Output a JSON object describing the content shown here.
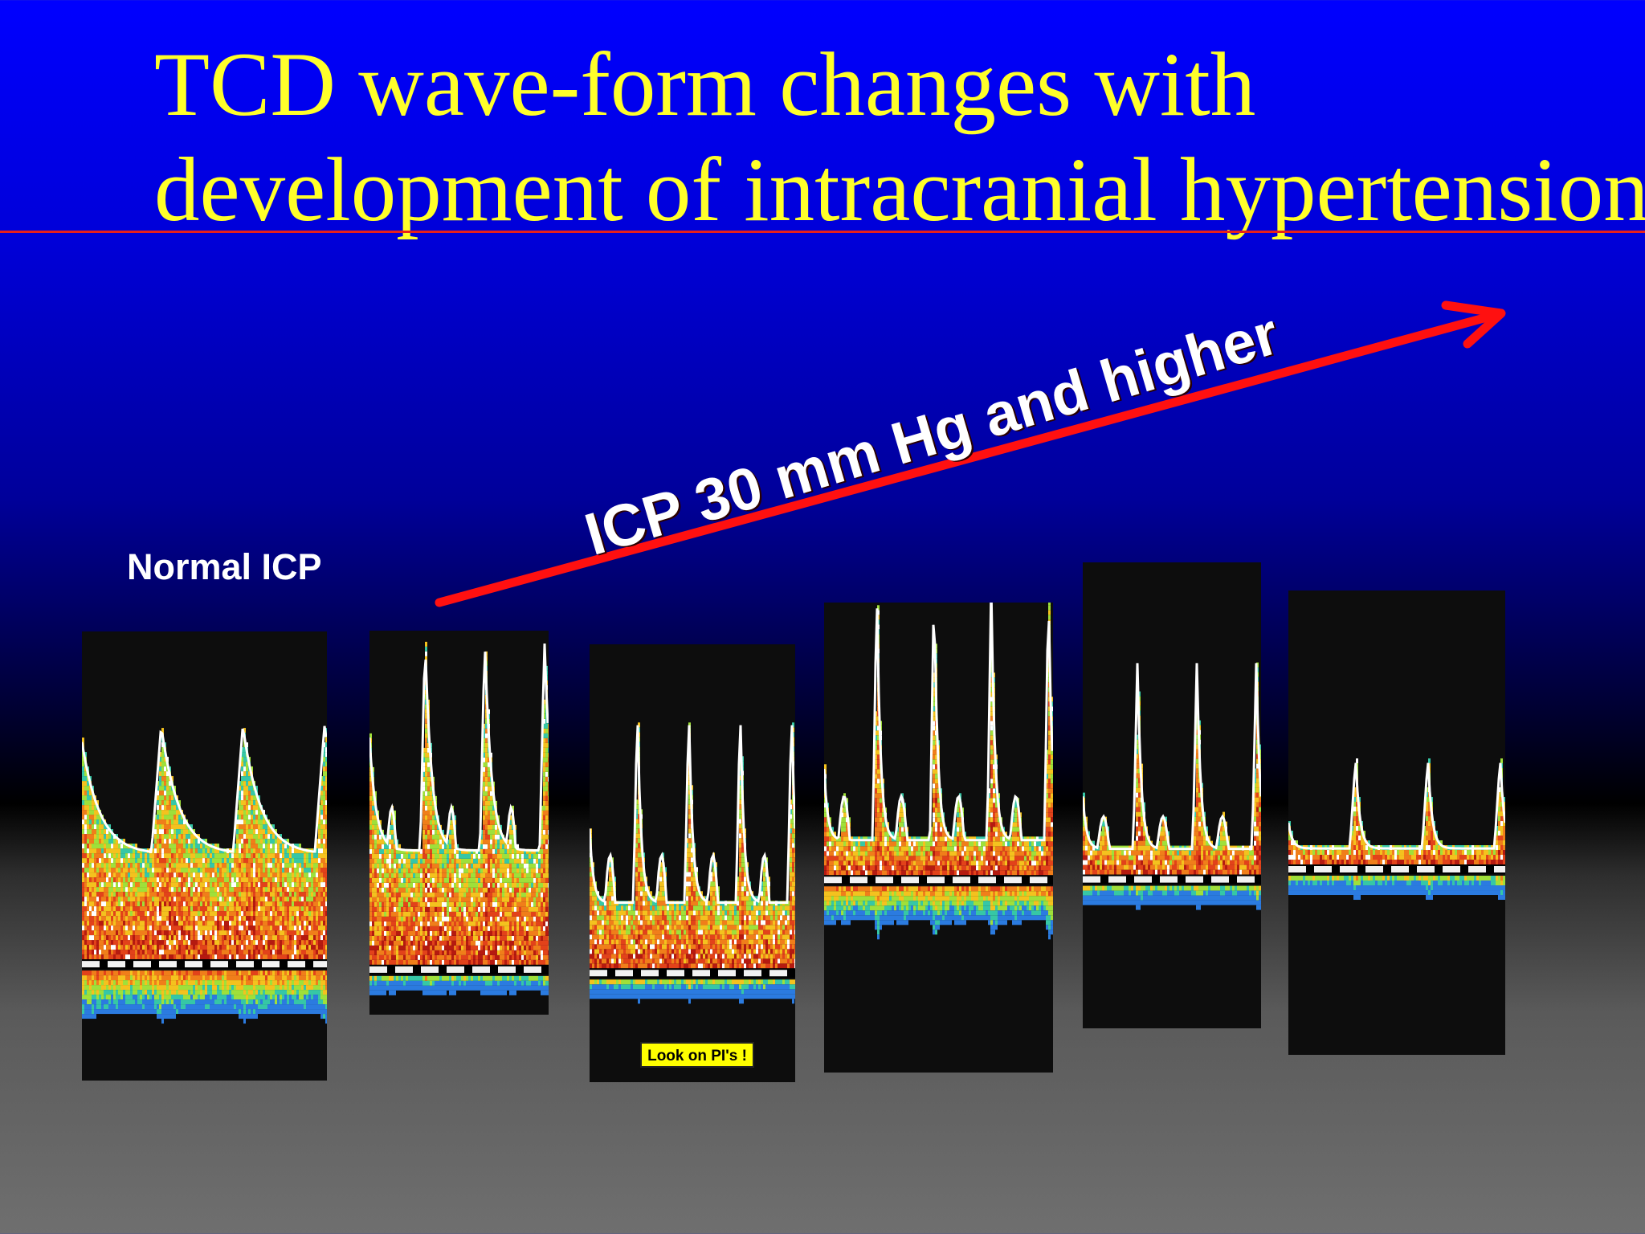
{
  "slide": {
    "title_lines": [
      "TCD wave-form changes with",
      "development of intracranial hypertension"
    ],
    "normal_label": "Normal ICP",
    "arrow_label": "ICP 30 mm Hg and higher",
    "note_label": "Look on PI's !"
  },
  "colors": {
    "title": "#ffff2a",
    "rule": "#e8201a",
    "arrow": "#ff1010",
    "panel_bg": "#0d0d0d",
    "note_bg": "#ffff00"
  },
  "waveforms": [
    {
      "id": "normal",
      "cycles": 3,
      "peak": 0.52,
      "shape": "rounded",
      "reverse": "strong"
    },
    {
      "id": "stage-1",
      "cycles": 3,
      "peak": 0.85,
      "shape": "spiky",
      "reverse": "weak"
    },
    {
      "id": "stage-2",
      "cycles": 4,
      "peak": 0.6,
      "shape": "spiky-low-diastole",
      "reverse": "weak"
    },
    {
      "id": "stage-3",
      "cycles": 4,
      "peak": 0.62,
      "shape": "sharp",
      "reverse": "strong"
    },
    {
      "id": "stage-4",
      "cycles": 3,
      "peak": 0.46,
      "shape": "sharp",
      "reverse": "weak"
    },
    {
      "id": "stage-5",
      "cycles": 3,
      "peak": 0.23,
      "shape": "minimal",
      "reverse": "weak"
    }
  ]
}
